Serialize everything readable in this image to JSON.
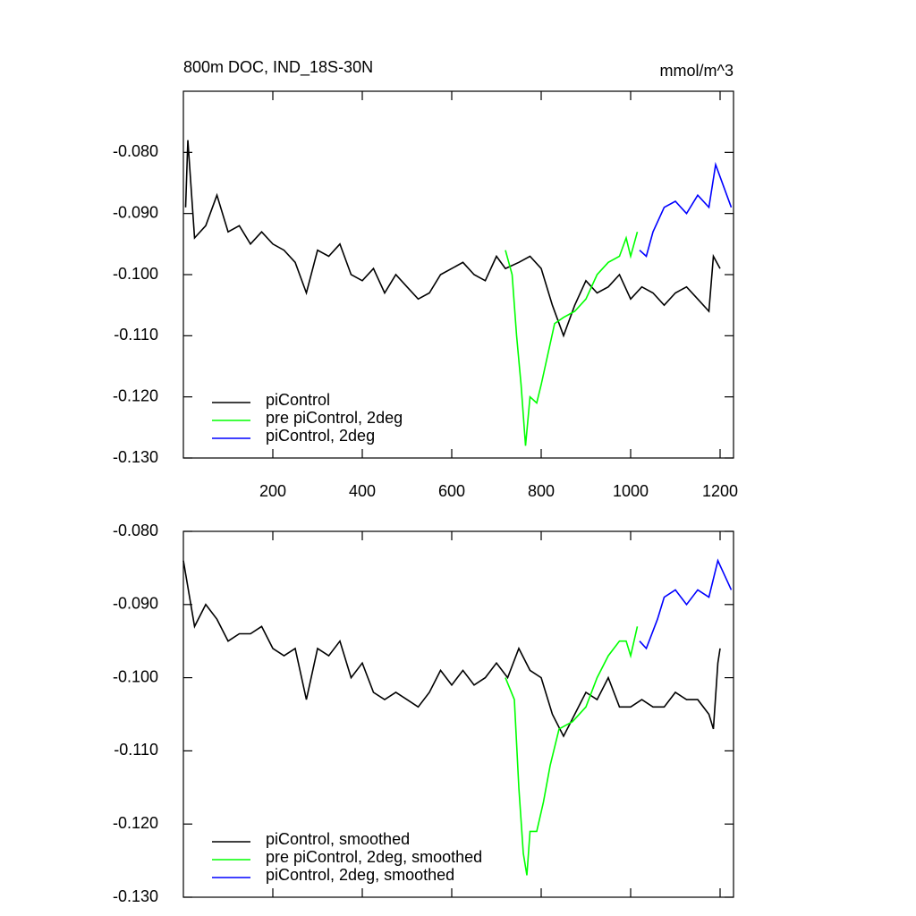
{
  "chart_data": [
    {
      "type": "line",
      "title": "800m DOC, IND_18S-30N",
      "units": "mmol/m^3",
      "xlim": [
        0,
        1230
      ],
      "xticks": [
        200,
        400,
        600,
        800,
        1000,
        1200
      ],
      "xtick_labels": true,
      "ylim": [
        -0.13,
        -0.07
      ],
      "yticks": [
        {
          "value": -0.08,
          "label": "-0.080"
        },
        {
          "value": -0.09,
          "label": "-0.090"
        },
        {
          "value": -0.1,
          "label": "-0.100"
        },
        {
          "value": -0.11,
          "label": "-0.110"
        },
        {
          "value": -0.12,
          "label": "-0.120"
        },
        {
          "value": -0.13,
          "label": "-0.130"
        }
      ],
      "legend": "lower-left",
      "series": [
        {
          "name": "piControl",
          "color": "#000000",
          "x": [
            5,
            10,
            25,
            50,
            75,
            100,
            125,
            150,
            175,
            200,
            225,
            250,
            275,
            300,
            325,
            350,
            375,
            400,
            425,
            450,
            475,
            500,
            525,
            550,
            575,
            600,
            625,
            650,
            675,
            700,
            720,
            750,
            775,
            800,
            825,
            850,
            875,
            900,
            925,
            950,
            975,
            1000,
            1025,
            1050,
            1075,
            1100,
            1125,
            1150,
            1175,
            1185,
            1200
          ],
          "values": [
            -0.089,
            -0.078,
            -0.094,
            -0.092,
            -0.087,
            -0.093,
            -0.092,
            -0.095,
            -0.093,
            -0.095,
            -0.096,
            -0.098,
            -0.103,
            -0.096,
            -0.097,
            -0.095,
            -0.1,
            -0.101,
            -0.099,
            -0.103,
            -0.1,
            -0.102,
            -0.104,
            -0.103,
            -0.1,
            -0.099,
            -0.098,
            -0.1,
            -0.101,
            -0.097,
            -0.099,
            -0.098,
            -0.097,
            -0.099,
            -0.105,
            -0.11,
            -0.105,
            -0.101,
            -0.103,
            -0.102,
            -0.1,
            -0.104,
            -0.102,
            -0.103,
            -0.105,
            -0.103,
            -0.102,
            -0.104,
            -0.106,
            -0.097,
            -0.099
          ]
        },
        {
          "name": "pre piControl, 2deg",
          "color": "#00ff00",
          "x": [
            720,
            735,
            745,
            755,
            765,
            775,
            790,
            800,
            815,
            830,
            850,
            875,
            900,
            925,
            950,
            975,
            990,
            1000,
            1015
          ],
          "values": [
            -0.096,
            -0.1,
            -0.11,
            -0.118,
            -0.128,
            -0.12,
            -0.121,
            -0.118,
            -0.113,
            -0.108,
            -0.107,
            -0.106,
            -0.104,
            -0.1,
            -0.098,
            -0.097,
            -0.094,
            -0.097,
            -0.093
          ]
        },
        {
          "name": "piControl, 2deg",
          "color": "#0000ff",
          "x": [
            1020,
            1035,
            1050,
            1075,
            1100,
            1125,
            1150,
            1175,
            1190,
            1200,
            1215,
            1225
          ],
          "values": [
            -0.096,
            -0.097,
            -0.093,
            -0.089,
            -0.088,
            -0.09,
            -0.087,
            -0.089,
            -0.082,
            -0.084,
            -0.087,
            -0.089
          ]
        }
      ]
    },
    {
      "type": "line",
      "xlim": [
        0,
        1230
      ],
      "xticks": [
        200,
        400,
        600,
        800,
        1000,
        1200
      ],
      "xtick_labels": false,
      "ylim": [
        -0.13,
        -0.08
      ],
      "yticks": [
        {
          "value": -0.08,
          "label": "-0.080"
        },
        {
          "value": -0.09,
          "label": "-0.090"
        },
        {
          "value": -0.1,
          "label": "-0.100"
        },
        {
          "value": -0.11,
          "label": "-0.110"
        },
        {
          "value": -0.12,
          "label": "-0.120"
        },
        {
          "value": -0.13,
          "label": "-0.130"
        }
      ],
      "legend": "lower-left",
      "series": [
        {
          "name": "piControl, smoothed",
          "color": "#000000",
          "x": [
            0,
            25,
            50,
            75,
            100,
            125,
            150,
            175,
            200,
            225,
            250,
            275,
            300,
            325,
            350,
            375,
            400,
            425,
            450,
            475,
            500,
            525,
            550,
            575,
            600,
            625,
            650,
            675,
            700,
            725,
            750,
            775,
            800,
            825,
            850,
            875,
            900,
            925,
            950,
            975,
            1000,
            1025,
            1050,
            1075,
            1100,
            1125,
            1150,
            1175,
            1185,
            1195,
            1200
          ],
          "values": [
            -0.084,
            -0.093,
            -0.09,
            -0.092,
            -0.095,
            -0.094,
            -0.094,
            -0.093,
            -0.096,
            -0.097,
            -0.096,
            -0.103,
            -0.096,
            -0.097,
            -0.095,
            -0.1,
            -0.098,
            -0.102,
            -0.103,
            -0.102,
            -0.103,
            -0.104,
            -0.102,
            -0.099,
            -0.101,
            -0.099,
            -0.101,
            -0.1,
            -0.098,
            -0.1,
            -0.096,
            -0.099,
            -0.1,
            -0.105,
            -0.108,
            -0.105,
            -0.102,
            -0.103,
            -0.1,
            -0.104,
            -0.104,
            -0.103,
            -0.104,
            -0.104,
            -0.102,
            -0.103,
            -0.103,
            -0.105,
            -0.107,
            -0.098,
            -0.096
          ]
        },
        {
          "name": "pre piControl, 2deg, smoothed",
          "color": "#00ff00",
          "x": [
            720,
            740,
            750,
            760,
            768,
            775,
            790,
            805,
            820,
            840,
            870,
            900,
            925,
            950,
            975,
            990,
            1000,
            1015
          ],
          "values": [
            -0.1,
            -0.103,
            -0.115,
            -0.124,
            -0.127,
            -0.121,
            -0.121,
            -0.117,
            -0.112,
            -0.107,
            -0.106,
            -0.104,
            -0.1,
            -0.097,
            -0.095,
            -0.095,
            -0.097,
            -0.093
          ]
        },
        {
          "name": "piControl, 2deg, smoothed",
          "color": "#0000ff",
          "x": [
            1020,
            1035,
            1060,
            1075,
            1100,
            1125,
            1150,
            1175,
            1195,
            1210,
            1225
          ],
          "values": [
            -0.095,
            -0.096,
            -0.092,
            -0.089,
            -0.088,
            -0.09,
            -0.088,
            -0.089,
            -0.084,
            -0.086,
            -0.088
          ]
        }
      ]
    }
  ]
}
